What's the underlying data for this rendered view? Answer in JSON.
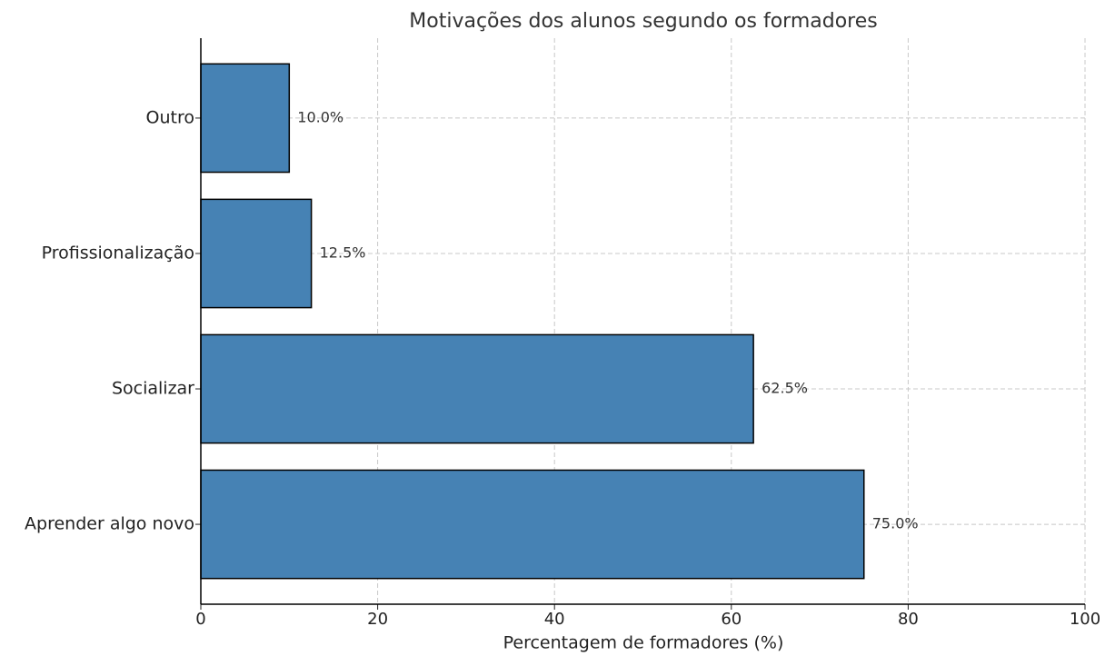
{
  "chart_data": {
    "type": "barh",
    "title": "Motivações dos alunos segundo os formadores",
    "x_label": "Percentagem de formadores (%)",
    "categories": [
      "Aprender algo novo",
      "Socializar",
      "Profissionalização",
      "Outro"
    ],
    "values": [
      75.0,
      62.5,
      12.5,
      10.0
    ],
    "value_labels": [
      "75.0%",
      "62.5%",
      "12.5%",
      "10.0%"
    ],
    "color": "#4682b4",
    "xlim": [
      0,
      100
    ],
    "xticks": [
      0,
      20,
      40,
      60,
      80,
      100
    ],
    "grid": true
  }
}
